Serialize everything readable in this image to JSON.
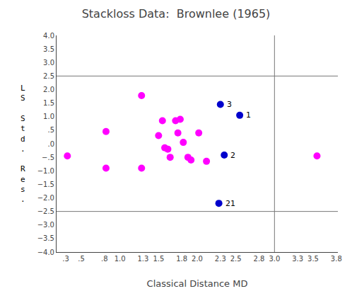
{
  "chart_data": {
    "type": "scatter",
    "title": "Stackloss Data:  Brownlee (1965)",
    "xlabel": "Classical Distance MD",
    "ylabel": "LS Std. Res.",
    "xlim": [
      0.18,
      3.82
    ],
    "ylim": [
      -4.0,
      4.0
    ],
    "xticks": [
      {
        "value": 0.3,
        "label": ".3"
      },
      {
        "value": 0.5,
        "label": ".5"
      },
      {
        "value": 0.8,
        "label": ".8"
      },
      {
        "value": 1.0,
        "label": "1.0"
      },
      {
        "value": 1.3,
        "label": "1.3"
      },
      {
        "value": 1.5,
        "label": "1.5"
      },
      {
        "value": 1.8,
        "label": "1.8"
      },
      {
        "value": 2.0,
        "label": "2.0"
      },
      {
        "value": 2.3,
        "label": "2.3"
      },
      {
        "value": 2.5,
        "label": "2.5"
      },
      {
        "value": 2.8,
        "label": "2.8"
      },
      {
        "value": 3.0,
        "label": "3.0"
      },
      {
        "value": 3.3,
        "label": "3.3"
      },
      {
        "value": 3.5,
        "label": "3.5"
      },
      {
        "value": 3.8,
        "label": "3.8"
      }
    ],
    "yticks": [
      {
        "value": -4.0,
        "label": "−4.0"
      },
      {
        "value": -3.5,
        "label": "−3.5"
      },
      {
        "value": -3.0,
        "label": "−3.0"
      },
      {
        "value": -2.5,
        "label": "−2.5"
      },
      {
        "value": -2.0,
        "label": "−2.0"
      },
      {
        "value": -1.5,
        "label": "−1.5"
      },
      {
        "value": -1.0,
        "label": "−1.0"
      },
      {
        "value": -0.5,
        "label": "−.5"
      },
      {
        "value": 0.0,
        "label": ".0"
      },
      {
        "value": 0.5,
        "label": ".5"
      },
      {
        "value": 1.0,
        "label": "1.0"
      },
      {
        "value": 1.5,
        "label": "1.5"
      },
      {
        "value": 2.0,
        "label": "2.0"
      },
      {
        "value": 2.5,
        "label": "2.5"
      },
      {
        "value": 3.0,
        "label": "3.0"
      },
      {
        "value": 3.5,
        "label": "3.5"
      },
      {
        "value": 4.0,
        "label": "4.0"
      }
    ],
    "grid": false,
    "series": [
      {
        "color": "#FF00FF",
        "x": [
          0.32,
          0.82,
          0.82,
          1.28,
          1.28,
          1.5,
          1.55,
          1.58,
          1.62,
          1.65,
          1.72,
          1.75,
          1.78,
          1.82,
          1.88,
          1.92,
          2.02,
          2.12,
          3.55
        ],
        "values": [
          -0.45,
          -0.9,
          0.45,
          1.78,
          -0.9,
          0.3,
          0.85,
          -0.15,
          -0.2,
          -0.5,
          0.85,
          0.4,
          0.9,
          0.05,
          -0.5,
          -0.6,
          0.4,
          -0.65,
          -0.45
        ]
      },
      {
        "color": "#0000CC",
        "x": [
          2.3,
          2.55,
          2.35,
          2.28
        ],
        "values": [
          1.45,
          1.05,
          -0.42,
          -2.2
        ]
      }
    ],
    "annotations": [
      {
        "text": "3",
        "x": 2.3,
        "y": 1.45
      },
      {
        "text": "1",
        "x": 2.55,
        "y": 1.05
      },
      {
        "text": "2",
        "x": 2.35,
        "y": -0.42
      },
      {
        "text": "21",
        "x": 2.28,
        "y": -2.2
      }
    ],
    "reference_lines": [
      {
        "axis": "y",
        "value": 2.5,
        "color": "#777777"
      },
      {
        "axis": "y",
        "value": -2.5,
        "color": "#777777"
      },
      {
        "axis": "x",
        "value": 3.0,
        "color": "#777777"
      }
    ]
  }
}
